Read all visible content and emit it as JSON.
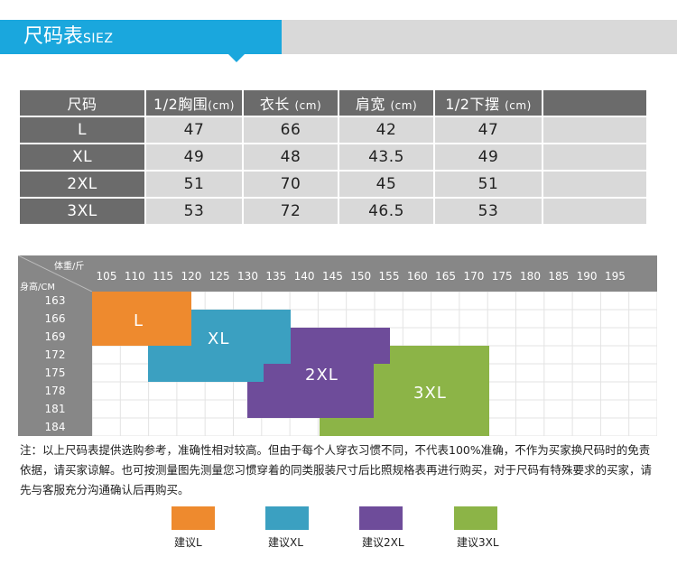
{
  "header": {
    "title": "尺码表",
    "subtitle": "SIEZ",
    "accent": "#1aa7dd"
  },
  "size_table": {
    "headers": [
      "尺码",
      "1/2胸围",
      "(cm)",
      "衣长",
      "(cm)",
      "肩宽",
      "(cm)",
      "1/2下摆",
      "(cm)"
    ],
    "rows": [
      {
        "size": "L",
        "values": [
          "47",
          "66",
          "42",
          "47"
        ]
      },
      {
        "size": "XL",
        "values": [
          "49",
          "48",
          "43.5",
          "49"
        ]
      },
      {
        "size": "2XL",
        "values": [
          "51",
          "70",
          "45",
          "51"
        ]
      },
      {
        "size": "3XL",
        "values": [
          "53",
          "72",
          "46.5",
          "53"
        ]
      }
    ]
  },
  "grid": {
    "weight_caption": "体重/斤",
    "height_caption": "身高/CM",
    "weights": [
      "105",
      "110",
      "115",
      "120",
      "125",
      "130",
      "135",
      "140",
      "145",
      "150",
      "155",
      "160",
      "165",
      "170",
      "175",
      "180",
      "185",
      "190",
      "195"
    ],
    "heights": [
      "163",
      "166",
      "169",
      "172",
      "175",
      "178",
      "181",
      "184"
    ],
    "regions": [
      {
        "label": "L",
        "color": "#ee8a2e"
      },
      {
        "label": "XL",
        "color": "#3ba0c1"
      },
      {
        "label": "2XL",
        "color": "#6e4c9a"
      },
      {
        "label": "3XL",
        "color": "#8cb447"
      }
    ]
  },
  "note": "注：以上尺码表提供选购参考，准确性相对较高。但由于每个人穿衣习惯不同，不代表100%准确，不作为买家换尺码时的免责依据，请买家谅解。也可按测量图先测量您习惯穿着的同类服装尺寸后比照规格表再进行购买，对于尺码有特殊要求的买家，请先与客服充分沟通确认后再购买。",
  "legend": [
    {
      "label": "建议L",
      "color": "#ee8a2e"
    },
    {
      "label": "建议XL",
      "color": "#3ba0c1"
    },
    {
      "label": "建议2XL",
      "color": "#6e4c9a"
    },
    {
      "label": "建议3XL",
      "color": "#8cb447"
    }
  ]
}
